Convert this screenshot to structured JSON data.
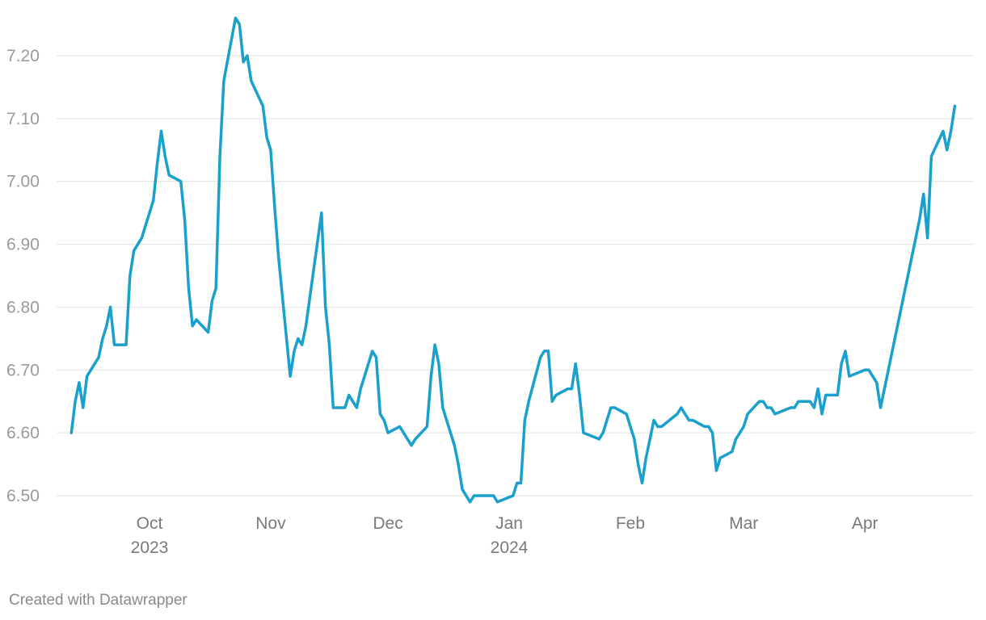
{
  "footer": {
    "credit": "Created with Datawrapper"
  },
  "chart_data": {
    "type": "line",
    "title": "",
    "xlabel": "",
    "ylabel": "",
    "ylim": [
      6.5,
      7.2
    ],
    "yticks": [
      "6.50",
      "6.60",
      "6.70",
      "6.80",
      "6.90",
      "7.00",
      "7.10",
      "7.20"
    ],
    "xticks": [
      {
        "date": "2023-10-01",
        "label": "Oct",
        "year": "2023"
      },
      {
        "date": "2023-11-01",
        "label": "Nov",
        "year": ""
      },
      {
        "date": "2023-12-01",
        "label": "Dec",
        "year": ""
      },
      {
        "date": "2024-01-01",
        "label": "Jan",
        "year": "2024"
      },
      {
        "date": "2024-02-01",
        "label": "Feb",
        "year": ""
      },
      {
        "date": "2024-03-01",
        "label": "Mar",
        "year": ""
      },
      {
        "date": "2024-04-01",
        "label": "Apr",
        "year": ""
      }
    ],
    "grid": true,
    "color": "#1aa0cc",
    "series": [
      {
        "points": [
          [
            "2023-09-11",
            6.6
          ],
          [
            "2023-09-12",
            6.65
          ],
          [
            "2023-09-13",
            6.68
          ],
          [
            "2023-09-14",
            6.64
          ],
          [
            "2023-09-15",
            6.69
          ],
          [
            "2023-09-18",
            6.72
          ],
          [
            "2023-09-19",
            6.75
          ],
          [
            "2023-09-20",
            6.77
          ],
          [
            "2023-09-21",
            6.8
          ],
          [
            "2023-09-22",
            6.74
          ],
          [
            "2023-09-25",
            6.74
          ],
          [
            "2023-09-26",
            6.85
          ],
          [
            "2023-09-27",
            6.89
          ],
          [
            "2023-09-29",
            6.91
          ],
          [
            "2023-10-02",
            6.97
          ],
          [
            "2023-10-03",
            7.03
          ],
          [
            "2023-10-04",
            7.08
          ],
          [
            "2023-10-05",
            7.04
          ],
          [
            "2023-10-06",
            7.01
          ],
          [
            "2023-10-09",
            7.0
          ],
          [
            "2023-10-10",
            6.94
          ],
          [
            "2023-10-11",
            6.83
          ],
          [
            "2023-10-12",
            6.77
          ],
          [
            "2023-10-13",
            6.78
          ],
          [
            "2023-10-16",
            6.76
          ],
          [
            "2023-10-17",
            6.81
          ],
          [
            "2023-10-18",
            6.83
          ],
          [
            "2023-10-19",
            7.04
          ],
          [
            "2023-10-20",
            7.16
          ],
          [
            "2023-10-23",
            7.26
          ],
          [
            "2023-10-24",
            7.25
          ],
          [
            "2023-10-25",
            7.19
          ],
          [
            "2023-10-26",
            7.2
          ],
          [
            "2023-10-27",
            7.16
          ],
          [
            "2023-10-30",
            7.12
          ],
          [
            "2023-10-31",
            7.07
          ],
          [
            "2023-11-01",
            7.05
          ],
          [
            "2023-11-02",
            6.96
          ],
          [
            "2023-11-03",
            6.88
          ],
          [
            "2023-11-06",
            6.69
          ],
          [
            "2023-11-07",
            6.73
          ],
          [
            "2023-11-08",
            6.75
          ],
          [
            "2023-11-09",
            6.74
          ],
          [
            "2023-11-10",
            6.77
          ],
          [
            "2023-11-14",
            6.95
          ],
          [
            "2023-11-15",
            6.8
          ],
          [
            "2023-11-16",
            6.74
          ],
          [
            "2023-11-17",
            6.64
          ],
          [
            "2023-11-20",
            6.64
          ],
          [
            "2023-11-21",
            6.66
          ],
          [
            "2023-11-22",
            6.65
          ],
          [
            "2023-11-23",
            6.64
          ],
          [
            "2023-11-24",
            6.67
          ],
          [
            "2023-11-27",
            6.73
          ],
          [
            "2023-11-28",
            6.72
          ],
          [
            "2023-11-29",
            6.63
          ],
          [
            "2023-11-30",
            6.62
          ],
          [
            "2023-12-01",
            6.6
          ],
          [
            "2023-12-04",
            6.61
          ],
          [
            "2023-12-06",
            6.59
          ],
          [
            "2023-12-07",
            6.58
          ],
          [
            "2023-12-08",
            6.59
          ],
          [
            "2023-12-11",
            6.61
          ],
          [
            "2023-12-12",
            6.69
          ],
          [
            "2023-12-13",
            6.74
          ],
          [
            "2023-12-14",
            6.71
          ],
          [
            "2023-12-15",
            6.64
          ],
          [
            "2023-12-18",
            6.58
          ],
          [
            "2023-12-19",
            6.55
          ],
          [
            "2023-12-20",
            6.51
          ],
          [
            "2023-12-22",
            6.49
          ],
          [
            "2023-12-23",
            6.5
          ],
          [
            "2023-12-28",
            6.5
          ],
          [
            "2023-12-29",
            6.49
          ],
          [
            "2024-01-02",
            6.5
          ],
          [
            "2024-01-03",
            6.52
          ],
          [
            "2024-01-04",
            6.52
          ],
          [
            "2024-01-05",
            6.62
          ],
          [
            "2024-01-06",
            6.65
          ],
          [
            "2024-01-09",
            6.72
          ],
          [
            "2024-01-10",
            6.73
          ],
          [
            "2024-01-11",
            6.73
          ],
          [
            "2024-01-12",
            6.65
          ],
          [
            "2024-01-13",
            6.66
          ],
          [
            "2024-01-16",
            6.67
          ],
          [
            "2024-01-17",
            6.67
          ],
          [
            "2024-01-18",
            6.71
          ],
          [
            "2024-01-19",
            6.66
          ],
          [
            "2024-01-20",
            6.6
          ],
          [
            "2024-01-24",
            6.59
          ],
          [
            "2024-01-25",
            6.6
          ],
          [
            "2024-01-27",
            6.64
          ],
          [
            "2024-01-28",
            6.64
          ],
          [
            "2024-01-31",
            6.63
          ],
          [
            "2024-02-02",
            6.59
          ],
          [
            "2024-02-03",
            6.55
          ],
          [
            "2024-02-04",
            6.52
          ],
          [
            "2024-02-05",
            6.56
          ],
          [
            "2024-02-07",
            6.62
          ],
          [
            "2024-02-08",
            6.61
          ],
          [
            "2024-02-09",
            6.61
          ],
          [
            "2024-02-13",
            6.63
          ],
          [
            "2024-02-14",
            6.64
          ],
          [
            "2024-02-16",
            6.62
          ],
          [
            "2024-02-17",
            6.62
          ],
          [
            "2024-02-20",
            6.61
          ],
          [
            "2024-02-21",
            6.61
          ],
          [
            "2024-02-22",
            6.6
          ],
          [
            "2024-02-23",
            6.54
          ],
          [
            "2024-02-24",
            6.56
          ],
          [
            "2024-02-27",
            6.57
          ],
          [
            "2024-02-28",
            6.59
          ],
          [
            "2024-03-01",
            6.61
          ],
          [
            "2024-03-02",
            6.63
          ],
          [
            "2024-03-05",
            6.65
          ],
          [
            "2024-03-06",
            6.65
          ],
          [
            "2024-03-07",
            6.64
          ],
          [
            "2024-03-08",
            6.64
          ],
          [
            "2024-03-09",
            6.63
          ],
          [
            "2024-03-13",
            6.64
          ],
          [
            "2024-03-14",
            6.64
          ],
          [
            "2024-03-15",
            6.65
          ],
          [
            "2024-03-18",
            6.65
          ],
          [
            "2024-03-19",
            6.64
          ],
          [
            "2024-03-20",
            6.67
          ],
          [
            "2024-03-21",
            6.63
          ],
          [
            "2024-03-22",
            6.66
          ],
          [
            "2024-03-25",
            6.66
          ],
          [
            "2024-03-26",
            6.71
          ],
          [
            "2024-03-27",
            6.73
          ],
          [
            "2024-03-28",
            6.69
          ],
          [
            "2024-04-01",
            6.7
          ],
          [
            "2024-04-02",
            6.7
          ],
          [
            "2024-04-04",
            6.68
          ],
          [
            "2024-04-05",
            6.64
          ],
          [
            "2024-04-15",
            6.94
          ],
          [
            "2024-04-16",
            6.98
          ],
          [
            "2024-04-17",
            6.91
          ],
          [
            "2024-04-18",
            7.04
          ],
          [
            "2024-04-21",
            7.08
          ],
          [
            "2024-04-22",
            7.05
          ],
          [
            "2024-04-23",
            7.08
          ],
          [
            "2024-04-24",
            7.12
          ]
        ]
      }
    ]
  }
}
